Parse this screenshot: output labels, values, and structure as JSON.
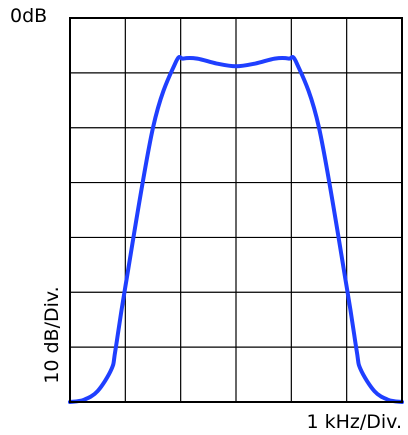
{
  "chart_data": {
    "type": "line",
    "top_label": "0dB",
    "xlabel": "1 kHz/Div.",
    "ylabel": "10 dB/Div.",
    "x_divisions": 6,
    "y_divisions": 7,
    "xlim": [
      0,
      6
    ],
    "ylim": [
      -70,
      0
    ],
    "grid": true,
    "series": [
      {
        "color": "#1f3fff",
        "x": [
          0.0,
          0.25,
          0.5,
          0.75,
          0.82,
          1.0,
          1.5,
          1.9,
          2.05,
          2.3,
          2.65,
          3.0,
          3.35,
          3.7,
          3.95,
          4.1,
          4.5,
          5.0,
          5.18,
          5.25,
          5.5,
          5.75,
          6.0
        ],
        "y": [
          -70.0,
          -69.6,
          -68.0,
          -64.0,
          -60.6,
          -49.0,
          -20.0,
          -8.3,
          -7.4,
          -7.4,
          -8.3,
          -8.8,
          -8.3,
          -7.4,
          -7.4,
          -8.3,
          -20.0,
          -49.0,
          -60.6,
          -64.0,
          -68.0,
          -69.6,
          -70.0
        ]
      }
    ]
  }
}
